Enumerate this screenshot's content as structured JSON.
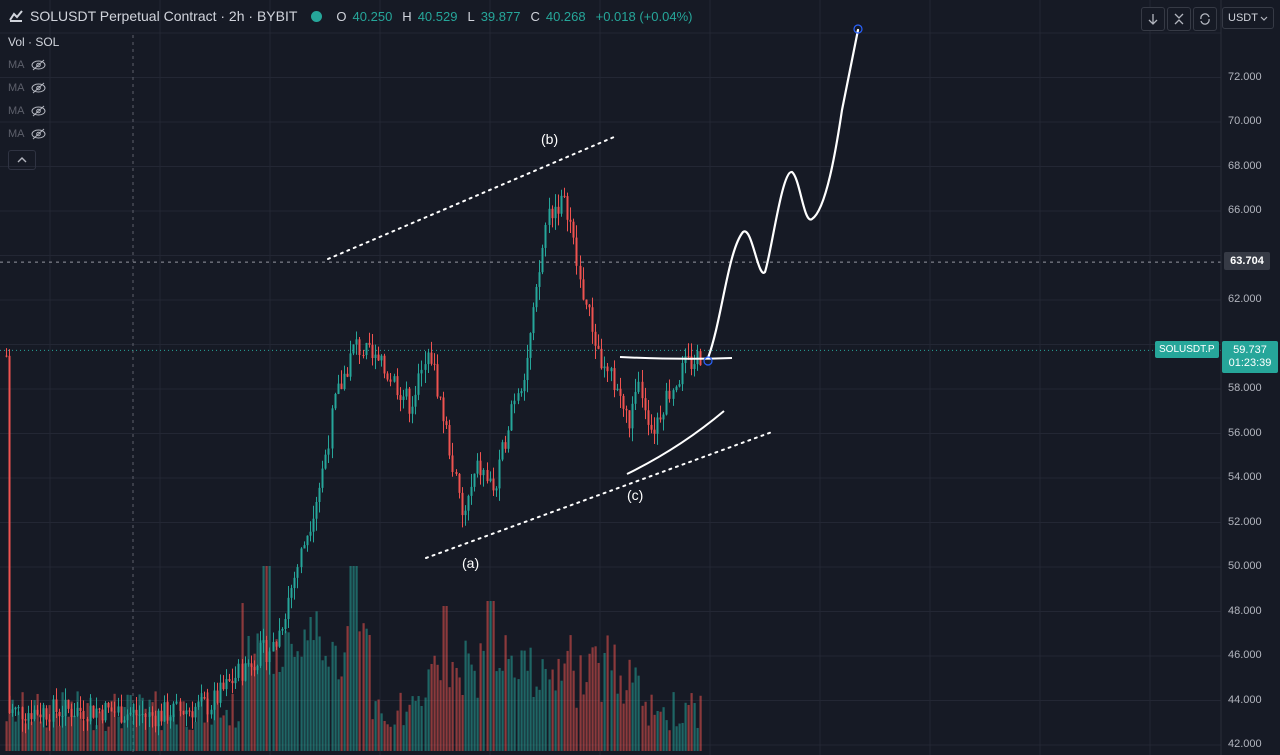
{
  "header": {
    "symbol_title": "SOLUSDT Perpetual Contract · 2h · BYBIT",
    "status_color": "#26a69a",
    "ohlc": [
      {
        "key": "O",
        "value": "40.250"
      },
      {
        "key": "H",
        "value": "40.529"
      },
      {
        "key": "L",
        "value": "39.877"
      },
      {
        "key": "C",
        "value": "40.268"
      },
      {
        "key": "chg",
        "value": "+0.018 (+0.04%)"
      }
    ]
  },
  "indicators": {
    "volume_label": "Vol · SOL",
    "ma_labels": [
      "MA",
      "MA",
      "MA",
      "MA"
    ],
    "hidden_icon": "eye-off-icon",
    "collapse_icon": "chevron-up-icon"
  },
  "toolbar": {
    "buttons": [
      "arrow-down-icon",
      "collapse-icon",
      "refresh-icon"
    ],
    "currency": "USDT",
    "currency_icon": "chevron-down-icon"
  },
  "price_axis": {
    "ticks": [
      "72.000",
      "70.000",
      "68.000",
      "66.000",
      "62.000",
      "58.000",
      "56.000",
      "54.000",
      "52.000",
      "50.000",
      "48.000",
      "46.000",
      "44.000",
      "42.000"
    ],
    "marker_price": "63.704",
    "current_price": "59.737",
    "countdown": "01:23:39",
    "symbol_tag": "SOLUSDT.P"
  },
  "annotations": {
    "wave_a": "(a)",
    "wave_b": "(b)",
    "wave_c": "(c)"
  },
  "colors": {
    "background": "#161a25",
    "up": "#26a69a",
    "down": "#ef5350",
    "grid": "#232734",
    "drawing": "#ffffff",
    "projection_handle": "#2962ff"
  },
  "chart_data": {
    "type": "candlestick",
    "title": "SOLUSDT Perpetual Contract · 2h · BYBIT",
    "ylim": [
      42,
      74
    ],
    "trendline_channel": [
      {
        "name": "upper",
        "from": [
          0,
          63.9
        ],
        "to": [
          1,
          69.3
        ]
      },
      {
        "name": "lower",
        "from": [
          0,
          50.4
        ],
        "to": [
          1,
          56.0
        ]
      }
    ],
    "swing_points": [
      {
        "label": "(a)",
        "y": 51.0
      },
      {
        "label": "(b)",
        "y": 68.2
      },
      {
        "label": "(c)",
        "y": 54.2
      }
    ],
    "key_levels": [
      63.704,
      59.737
    ],
    "projection_target": 73.9
  }
}
